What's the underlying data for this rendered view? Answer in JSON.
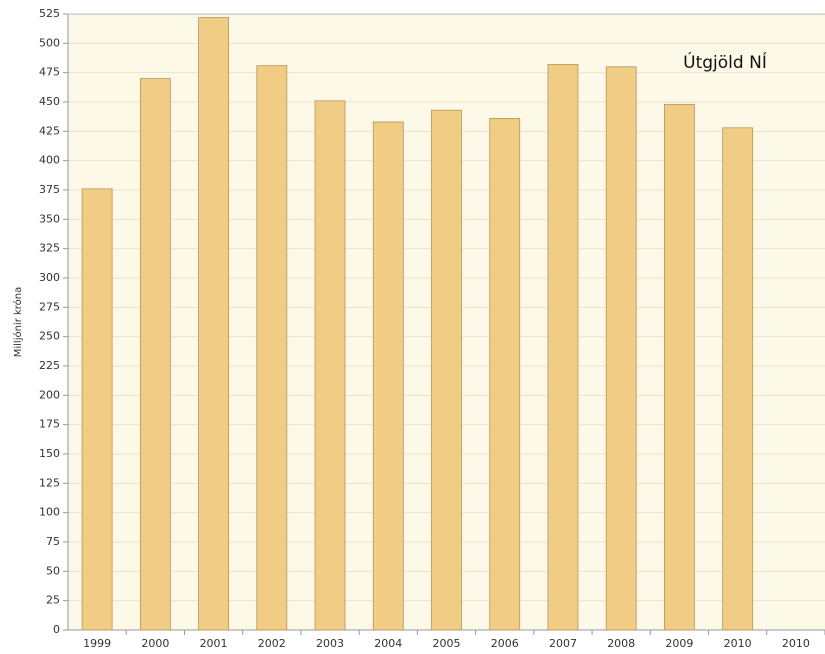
{
  "chart_data": {
    "type": "bar",
    "title": "Útgjöld NÍ",
    "y_label": "Milljónir króna",
    "categories": [
      "1999",
      "2000",
      "2001",
      "2002",
      "2003",
      "2004",
      "2005",
      "2006",
      "2007",
      "2008",
      "2009",
      "2010",
      "2010"
    ],
    "values": [
      376,
      470,
      522,
      481,
      451,
      433,
      443,
      436,
      482,
      480,
      448,
      428,
      null
    ],
    "color": "#f0cc84",
    "ylim": [
      0,
      525
    ],
    "yticks": [
      0,
      25,
      50,
      75,
      100,
      125,
      150,
      175,
      200,
      225,
      250,
      275,
      300,
      325,
      350,
      375,
      400,
      425,
      450,
      475,
      500,
      525
    ],
    "grid": true
  }
}
